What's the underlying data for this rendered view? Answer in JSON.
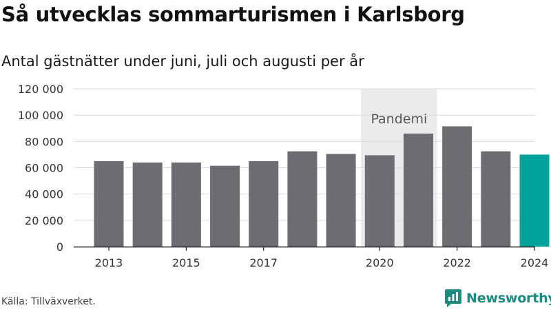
{
  "title": "Så utvecklas sommarturismen i Karlsborg",
  "subtitle": "Antal gästnätter under juni, juli och augusti per år",
  "source": "Källa: Tillväxverket.",
  "brand": {
    "name": "Newsworthy",
    "icon": "newsworthy-logo-icon",
    "color": "#1e8a80"
  },
  "chart_data": {
    "type": "bar",
    "categories": [
      "2013",
      "2014",
      "2015",
      "2016",
      "2017",
      "2018",
      "2019",
      "2020",
      "2021",
      "2022",
      "2023",
      "2024"
    ],
    "values": [
      65000,
      64000,
      64000,
      61500,
      65000,
      72500,
      70500,
      69500,
      86000,
      91500,
      72500,
      70000
    ],
    "x_tick_labels": [
      "2013",
      "",
      "2015",
      "",
      "2017",
      "",
      "",
      "2020",
      "",
      "2022",
      "",
      "2024"
    ],
    "y_ticks": [
      0,
      20000,
      40000,
      60000,
      80000,
      100000,
      120000
    ],
    "y_tick_labels": [
      "0",
      "20 000",
      "40 000",
      "60 000",
      "80 000",
      "100 000",
      "120 000"
    ],
    "ylim": [
      0,
      120000
    ],
    "xlabel": "",
    "ylabel": "",
    "bar_color": "#6d6c70",
    "highlight_index": 11,
    "highlight_color": "#00a39a",
    "grid": true,
    "annotation": {
      "label": "Pandemi",
      "from_category": "2020",
      "to_category": "2021",
      "band_color": "#ebebeb"
    }
  }
}
